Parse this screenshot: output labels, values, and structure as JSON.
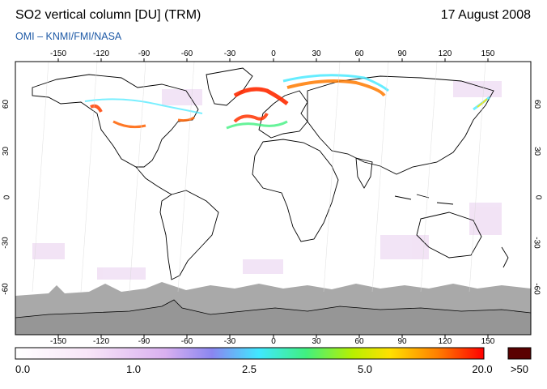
{
  "header": {
    "title": "SO2 vertical column [DU] (TRM)",
    "date": "17 August 2008",
    "credit": "OMI  –  KNMI/FMI/NASA"
  },
  "map": {
    "lon_ticks": [
      "-150",
      "-120",
      "-90",
      "-60",
      "-30",
      "0",
      "30",
      "60",
      "90",
      "120",
      "150"
    ],
    "lat_ticks": [
      "60",
      "30",
      "0",
      "-30",
      "-60"
    ],
    "colors": {
      "ocean": "#ffffff",
      "land_outline": "#000000",
      "no_data": "#a9a9a9",
      "frame": "#000000"
    }
  },
  "colorbar": {
    "labels": [
      "0.0",
      "1.0",
      "2.5",
      "5.0",
      "20.0",
      ">50"
    ],
    "colors": [
      "#ffffff",
      "#f4d8f4",
      "#d0a8f0",
      "#8080f0",
      "#40e0ff",
      "#40ff80",
      "#c0ff00",
      "#ffe000",
      "#ff8000",
      "#ff0000"
    ],
    "overflow_color": "#5a0000"
  }
}
